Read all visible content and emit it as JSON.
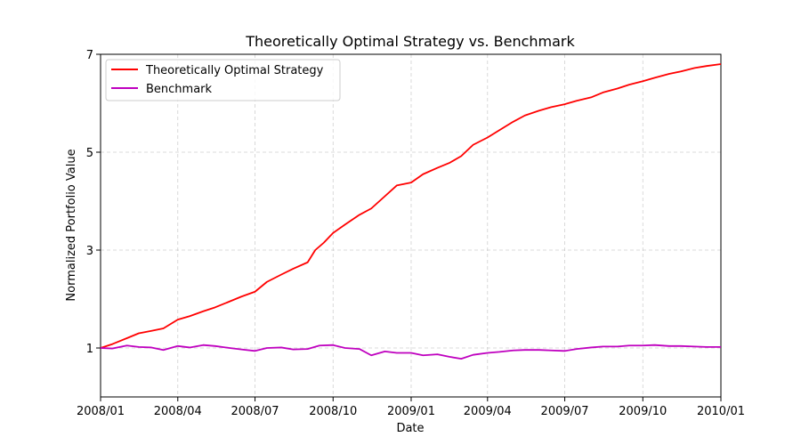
{
  "chart_data": {
    "type": "line",
    "title": "Theoretically Optimal Strategy vs. Benchmark",
    "xlabel": "Date",
    "ylabel": "Normalized Portfolio Value",
    "x_ticks": [
      "2008/01",
      "2008/04",
      "2008/07",
      "2008/10",
      "2009/01",
      "2009/04",
      "2009/07",
      "2009/10",
      "2010/01"
    ],
    "y_ticks": [
      1,
      3,
      5,
      7
    ],
    "xlim": [
      "2008-01-01",
      "2010-01-01"
    ],
    "ylim": [
      0,
      7
    ],
    "grid": true,
    "legend_position": "top-left",
    "series": [
      {
        "name": "Theoretically Optimal Strategy",
        "color": "#ff0000",
        "points": [
          [
            "2008-01-01",
            1.0
          ],
          [
            "2008-01-15",
            1.08
          ],
          [
            "2008-02-01",
            1.2
          ],
          [
            "2008-02-15",
            1.3
          ],
          [
            "2008-03-01",
            1.35
          ],
          [
            "2008-03-15",
            1.4
          ],
          [
            "2008-04-01",
            1.58
          ],
          [
            "2008-04-15",
            1.65
          ],
          [
            "2008-05-01",
            1.75
          ],
          [
            "2008-05-15",
            1.83
          ],
          [
            "2008-06-01",
            1.95
          ],
          [
            "2008-06-15",
            2.05
          ],
          [
            "2008-07-01",
            2.15
          ],
          [
            "2008-07-15",
            2.35
          ],
          [
            "2008-08-01",
            2.5
          ],
          [
            "2008-08-15",
            2.62
          ],
          [
            "2008-09-01",
            2.75
          ],
          [
            "2008-09-10",
            3.0
          ],
          [
            "2008-09-20",
            3.15
          ],
          [
            "2008-10-01",
            3.35
          ],
          [
            "2008-10-15",
            3.52
          ],
          [
            "2008-11-01",
            3.72
          ],
          [
            "2008-11-15",
            3.85
          ],
          [
            "2008-12-01",
            4.1
          ],
          [
            "2008-12-15",
            4.32
          ],
          [
            "2009-01-01",
            4.38
          ],
          [
            "2009-01-15",
            4.55
          ],
          [
            "2009-02-01",
            4.68
          ],
          [
            "2009-02-15",
            4.78
          ],
          [
            "2009-03-01",
            4.92
          ],
          [
            "2009-03-15",
            5.15
          ],
          [
            "2009-04-01",
            5.3
          ],
          [
            "2009-04-15",
            5.45
          ],
          [
            "2009-05-01",
            5.62
          ],
          [
            "2009-05-15",
            5.75
          ],
          [
            "2009-06-01",
            5.85
          ],
          [
            "2009-06-15",
            5.92
          ],
          [
            "2009-07-01",
            5.98
          ],
          [
            "2009-07-15",
            6.05
          ],
          [
            "2009-08-01",
            6.12
          ],
          [
            "2009-08-15",
            6.22
          ],
          [
            "2009-09-01",
            6.3
          ],
          [
            "2009-09-15",
            6.38
          ],
          [
            "2009-10-01",
            6.45
          ],
          [
            "2009-10-15",
            6.52
          ],
          [
            "2009-11-01",
            6.6
          ],
          [
            "2009-11-15",
            6.65
          ],
          [
            "2009-12-01",
            6.72
          ],
          [
            "2009-12-15",
            6.76
          ],
          [
            "2010-01-01",
            6.8
          ]
        ]
      },
      {
        "name": "Benchmark",
        "color": "#bf00bf",
        "points": [
          [
            "2008-01-01",
            1.0
          ],
          [
            "2008-01-15",
            0.99
          ],
          [
            "2008-02-01",
            1.05
          ],
          [
            "2008-02-15",
            1.02
          ],
          [
            "2008-03-01",
            1.01
          ],
          [
            "2008-03-15",
            0.96
          ],
          [
            "2008-04-01",
            1.04
          ],
          [
            "2008-04-15",
            1.01
          ],
          [
            "2008-05-01",
            1.06
          ],
          [
            "2008-05-15",
            1.04
          ],
          [
            "2008-06-01",
            1.0
          ],
          [
            "2008-06-15",
            0.97
          ],
          [
            "2008-07-01",
            0.94
          ],
          [
            "2008-07-15",
            1.0
          ],
          [
            "2008-08-01",
            1.01
          ],
          [
            "2008-08-15",
            0.97
          ],
          [
            "2008-09-01",
            0.98
          ],
          [
            "2008-09-15",
            1.05
          ],
          [
            "2008-10-01",
            1.06
          ],
          [
            "2008-10-15",
            1.0
          ],
          [
            "2008-11-01",
            0.98
          ],
          [
            "2008-11-15",
            0.85
          ],
          [
            "2008-12-01",
            0.93
          ],
          [
            "2008-12-15",
            0.9
          ],
          [
            "2009-01-01",
            0.9
          ],
          [
            "2009-01-15",
            0.85
          ],
          [
            "2009-02-01",
            0.87
          ],
          [
            "2009-02-15",
            0.82
          ],
          [
            "2009-03-01",
            0.78
          ],
          [
            "2009-03-15",
            0.86
          ],
          [
            "2009-04-01",
            0.9
          ],
          [
            "2009-04-15",
            0.92
          ],
          [
            "2009-05-01",
            0.95
          ],
          [
            "2009-05-15",
            0.96
          ],
          [
            "2009-06-01",
            0.96
          ],
          [
            "2009-06-15",
            0.95
          ],
          [
            "2009-07-01",
            0.94
          ],
          [
            "2009-07-15",
            0.98
          ],
          [
            "2009-08-01",
            1.01
          ],
          [
            "2009-08-15",
            1.03
          ],
          [
            "2009-09-01",
            1.03
          ],
          [
            "2009-09-15",
            1.05
          ],
          [
            "2009-10-01",
            1.05
          ],
          [
            "2009-10-15",
            1.06
          ],
          [
            "2009-11-01",
            1.04
          ],
          [
            "2009-11-15",
            1.04
          ],
          [
            "2009-12-01",
            1.03
          ],
          [
            "2009-12-15",
            1.02
          ],
          [
            "2010-01-01",
            1.02
          ]
        ]
      }
    ]
  }
}
